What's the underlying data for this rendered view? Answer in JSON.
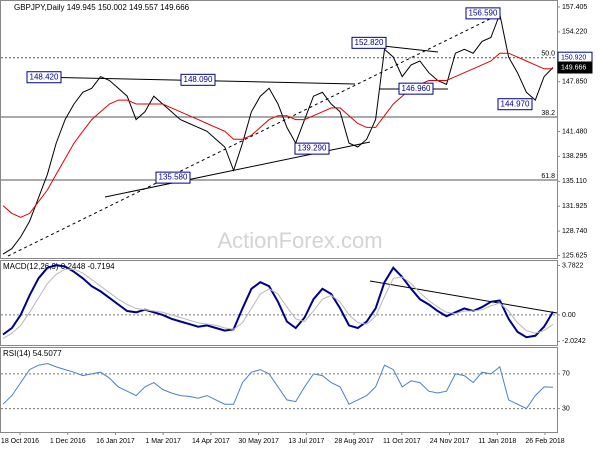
{
  "chart_data": [
    {
      "type": "line",
      "title": "GBPJPY,Daily 149.945 150.002 149.557 149.666",
      "watermark": "ActionForex.com",
      "ylim": [
        125.3,
        158.3
      ],
      "yticks": [
        {
          "value": 157.405,
          "label": "157.405"
        },
        {
          "value": 154.22,
          "label": "154.220"
        },
        {
          "value": 147.85,
          "label": "147.850"
        },
        {
          "value": 141.48,
          "label": "141.480"
        },
        {
          "value": 138.295,
          "label": "138.295"
        },
        {
          "value": 135.11,
          "label": "135.110"
        },
        {
          "value": 131.925,
          "label": "131.925"
        },
        {
          "value": 128.74,
          "label": "128.740"
        },
        {
          "value": 125.625,
          "label": "125.625"
        }
      ],
      "series": [
        {
          "color": "#000000",
          "values": [
            125.8,
            126.5,
            128,
            130,
            133,
            136,
            140,
            143,
            145,
            146.5,
            147,
            148.5,
            148,
            147,
            146,
            143,
            144,
            146,
            145,
            144,
            143,
            142.5,
            142,
            141.5,
            140.5,
            139.5,
            136.5,
            140,
            144,
            146,
            147,
            145,
            142,
            140,
            143,
            146,
            146.5,
            145,
            144,
            140,
            139.5,
            140.5,
            143,
            152,
            151,
            148.5,
            150,
            150.5,
            149,
            148,
            147.5,
            151.5,
            152,
            151.5,
            153,
            153.5,
            156.5,
            151,
            149,
            146.5,
            145.5,
            148.5,
            149.666
          ]
        },
        {
          "color": "#e00000",
          "values": [
            132,
            131,
            130.5,
            131,
            132.5,
            134,
            136,
            138,
            140,
            141.5,
            143,
            144,
            145,
            145.5,
            145.5,
            145,
            145,
            145,
            145,
            144.5,
            144,
            143.5,
            143,
            142.5,
            142,
            141.5,
            140.5,
            140.5,
            141,
            142,
            143,
            143.5,
            143.5,
            143,
            143,
            143.5,
            144,
            144.5,
            144.5,
            143.5,
            142.5,
            142,
            142,
            143.5,
            145,
            146,
            147,
            147.5,
            148,
            148,
            148,
            148.5,
            149,
            149.5,
            150,
            150.5,
            151.5,
            151.5,
            151,
            150.5,
            150,
            149.5,
            149.5
          ]
        }
      ],
      "annotations": [
        {
          "value": 148.42,
          "label": "148.420"
        },
        {
          "value": 148.09,
          "label": "148.090"
        },
        {
          "value": 152.82,
          "label": "152.820"
        },
        {
          "value": 156.59,
          "label": "156.590"
        },
        {
          "value": 146.96,
          "label": "146.960"
        },
        {
          "value": 144.97,
          "label": "144.970"
        },
        {
          "value": 139.29,
          "label": "139.290"
        },
        {
          "value": 135.58,
          "label": "135.580"
        }
      ],
      "fib_levels": [
        {
          "label": "50.0",
          "price": 150.92
        },
        {
          "label": "38.2",
          "price": 143.33
        },
        {
          "label": "61.8",
          "price": 135.27
        }
      ],
      "price_labels": [
        {
          "value": 150.92,
          "label": "150.920",
          "color": "#ffffff"
        },
        {
          "value": 149.666,
          "label": "149.666",
          "color": "#000000"
        }
      ]
    },
    {
      "type": "line",
      "title": "MACD(12,26,9) 0.2448 -0.7194",
      "ylim": [
        -2.3,
        4.2
      ],
      "yticks": [
        3.7822,
        {
          "value": 0,
          "label": "0.00"
        },
        -2.0242
      ],
      "ref_lines": [
        0
      ],
      "series": [
        {
          "color": "#00008b",
          "values": [
            -1.5,
            -1,
            0,
            1.5,
            2.8,
            3.6,
            3.8,
            3.7,
            3.3,
            2.8,
            2.2,
            1.8,
            1.3,
            0.8,
            0.3,
            0.2,
            0.4,
            0.2,
            0,
            -0.3,
            -0.5,
            -0.7,
            -0.9,
            -0.8,
            -1,
            -1.2,
            -1.1,
            0.5,
            2,
            2.5,
            2.2,
            1,
            -0.5,
            -1,
            -0.2,
            1.2,
            2,
            1.6,
            0.5,
            -0.8,
            -1,
            -0.5,
            0.5,
            2.5,
            3.6,
            2.9,
            2,
            1.2,
            0.8,
            0.3,
            -0.1,
            0.2,
            0.5,
            0.3,
            0.6,
            1,
            1.1,
            -0.3,
            -1.3,
            -1.7,
            -1.6,
            -0.9,
            0.2448
          ]
        },
        {
          "color": "#b8b8b8",
          "values": [
            -1.8,
            -1.4,
            -0.8,
            0.2,
            1.3,
            2.4,
            3.1,
            3.5,
            3.5,
            3.2,
            2.7,
            2.2,
            1.7,
            1.2,
            0.8,
            0.5,
            0.4,
            0.3,
            0.2,
            0,
            -0.2,
            -0.4,
            -0.6,
            -0.7,
            -0.8,
            -1,
            -1.1,
            -0.6,
            0.5,
            1.6,
            2,
            1.6,
            0.6,
            -0.3,
            -0.5,
            0.3,
            1.2,
            1.5,
            1,
            0,
            -0.6,
            -0.7,
            -0.1,
            1.4,
            2.8,
            2.9,
            2.4,
            1.7,
            1.1,
            0.6,
            0.2,
            0.1,
            0.3,
            0.3,
            0.4,
            0.7,
            0.9,
            0.3,
            -0.6,
            -1.2,
            -1.4,
            -1.2,
            -0.7194
          ]
        }
      ]
    },
    {
      "type": "line",
      "title": "RSI(14) 54.5077",
      "ylim": [
        3,
        101
      ],
      "yticks": [
        70,
        30
      ],
      "ref_lines": [
        70,
        30
      ],
      "series": [
        {
          "color": "#4a7fd0",
          "values": [
            35,
            45,
            60,
            75,
            80,
            82,
            78,
            75,
            72,
            68,
            70,
            72,
            65,
            55,
            50,
            45,
            55,
            60,
            52,
            48,
            45,
            44,
            42,
            45,
            40,
            35,
            35,
            60,
            72,
            75,
            70,
            55,
            40,
            38,
            55,
            70,
            68,
            60,
            55,
            35,
            40,
            45,
            55,
            80,
            75,
            55,
            62,
            60,
            50,
            48,
            50,
            70,
            68,
            60,
            72,
            70,
            78,
            40,
            35,
            30,
            45,
            55,
            54.5077
          ]
        }
      ],
      "date_labels": [
        "18 Oct 2016",
        "1 Dec 2016",
        "16 Jan 2017",
        "1 Mar 2017",
        "14 Apr 2017",
        "30 May 2017",
        "13 Jul 2017",
        "28 Aug 2017",
        "11 Oct 2017",
        "24 Nov 2017",
        "11 Jan 2018",
        "26 Feb 2018"
      ]
    }
  ]
}
